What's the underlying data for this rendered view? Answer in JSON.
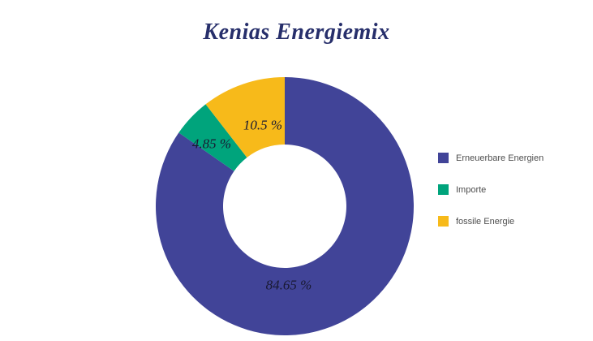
{
  "chart_data": {
    "type": "pie",
    "subtype": "donut",
    "title": "Kenias Energiemix",
    "legend_position": "right",
    "direction": "clockwise",
    "start_angle_deg": 0,
    "donut_hole_ratio": 0.48,
    "total": 100,
    "series": [
      {
        "name": "Erneuerbare Energien",
        "value": 84.65,
        "label": "84.65 %",
        "color": "#414498"
      },
      {
        "name": "Importe",
        "value": 4.85,
        "label": "4.85 %",
        "color": "#00A47C"
      },
      {
        "name": "fossile Energie",
        "value": 10.5,
        "label": "10.5 %",
        "color": "#F7BA1A"
      }
    ]
  },
  "colors": {
    "title": "#272f6b",
    "slice_label": "#191932",
    "background": "#ffffff"
  }
}
